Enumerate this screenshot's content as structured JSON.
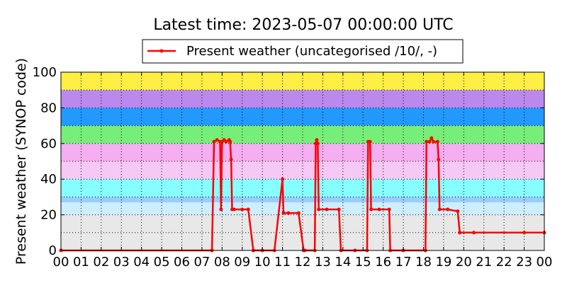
{
  "chart_data": {
    "type": "line",
    "title": "Latest time: 2023-05-07 00:00:00 UTC",
    "ylabel": "Present weather (SYNOP code)",
    "xlabel": "",
    "xlim": [
      0,
      24
    ],
    "ylim": [
      0,
      100
    ],
    "x_ticks": [
      "00",
      "01",
      "02",
      "03",
      "04",
      "05",
      "06",
      "07",
      "08",
      "09",
      "10",
      "11",
      "12",
      "13",
      "14",
      "15",
      "16",
      "17",
      "18",
      "19",
      "20",
      "21",
      "22",
      "23",
      "00"
    ],
    "y_ticks": [
      0,
      20,
      40,
      60,
      80,
      100
    ],
    "grid": true,
    "legend_position": "top-center",
    "background_bands": [
      {
        "from": 0,
        "to": 20,
        "color": "#e8e8e8"
      },
      {
        "from": 20,
        "to": 27,
        "color": "#cceeff"
      },
      {
        "from": 27,
        "to": 30,
        "color": "#99ccff"
      },
      {
        "from": 30,
        "to": 40,
        "color": "#88ffff"
      },
      {
        "from": 40,
        "to": 50,
        "color": "#f5c8f5"
      },
      {
        "from": 50,
        "to": 60,
        "color": "#f5aef0"
      },
      {
        "from": 60,
        "to": 70,
        "color": "#77ee77"
      },
      {
        "from": 70,
        "to": 80,
        "color": "#2299ff"
      },
      {
        "from": 80,
        "to": 90,
        "color": "#bb88ee"
      },
      {
        "from": 90,
        "to": 100,
        "color": "#ffee44"
      }
    ],
    "series": [
      {
        "name": "Present weather (uncategorised /10/, -)",
        "color": "#ff0000",
        "x": [
          0,
          7.5,
          7.6,
          7.75,
          7.9,
          7.95,
          8.0,
          8.1,
          8.2,
          8.35,
          8.4,
          8.45,
          8.5,
          8.6,
          9.0,
          9.3,
          9.55,
          10.0,
          10.6,
          11.0,
          11.05,
          11.3,
          11.8,
          12.05,
          12.1,
          12.6,
          12.65,
          12.7,
          12.75,
          12.8,
          13.2,
          13.8,
          13.9,
          14.6,
          15.2,
          15.25,
          15.35,
          15.4,
          15.8,
          16.3,
          16.35,
          17.0,
          18.1,
          18.15,
          18.3,
          18.4,
          18.5,
          18.7,
          18.75,
          18.8,
          19.2,
          19.7,
          19.8,
          20.5,
          23.0,
          24.0
        ],
        "values": [
          0,
          0,
          61,
          62,
          61,
          23,
          61,
          62,
          61,
          62,
          61,
          51,
          23,
          23,
          23,
          23,
          0,
          0,
          0,
          40,
          21,
          21,
          21,
          0,
          0,
          0,
          60,
          62,
          60,
          23,
          23,
          23,
          0,
          0,
          0,
          61,
          61,
          23,
          23,
          23,
          0,
          0,
          0,
          61,
          61,
          63,
          61,
          61,
          51,
          23,
          23,
          22,
          10,
          10,
          10,
          10
        ]
      }
    ]
  }
}
